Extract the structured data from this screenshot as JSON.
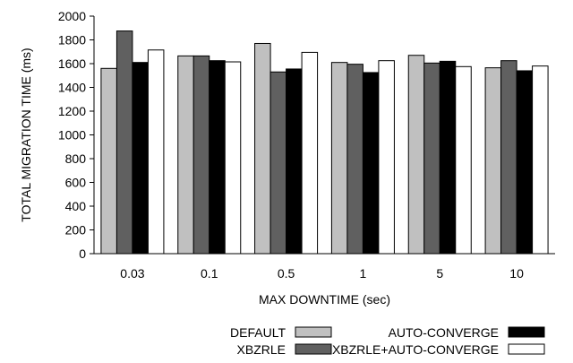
{
  "chart_data": {
    "type": "bar",
    "xlabel": "MAX DOWNTIME (sec)",
    "ylabel": "TOTAL MIGRATION TIME (ms)",
    "ylim": [
      0,
      2000
    ],
    "yticks": [
      0,
      200,
      400,
      600,
      800,
      1000,
      1200,
      1400,
      1600,
      1800,
      2000
    ],
    "categories": [
      "0.03",
      "0.1",
      "0.5",
      "1",
      "5",
      "10"
    ],
    "series": [
      {
        "name": "DEFAULT",
        "color": "#c0c0c0",
        "values": [
          1560,
          1665,
          1770,
          1610,
          1670,
          1565
        ]
      },
      {
        "name": "XBZRLE",
        "color": "#606060",
        "values": [
          1875,
          1665,
          1530,
          1595,
          1605,
          1625
        ]
      },
      {
        "name": "AUTO-CONVERGE",
        "color": "#000000",
        "values": [
          1610,
          1625,
          1555,
          1525,
          1620,
          1540
        ]
      },
      {
        "name": "XBZRLE+AUTO-CONVERGE",
        "color": "#ffffff",
        "values": [
          1715,
          1615,
          1695,
          1625,
          1575,
          1580
        ]
      }
    ],
    "legend_position": "bottom-right",
    "grid": false
  }
}
